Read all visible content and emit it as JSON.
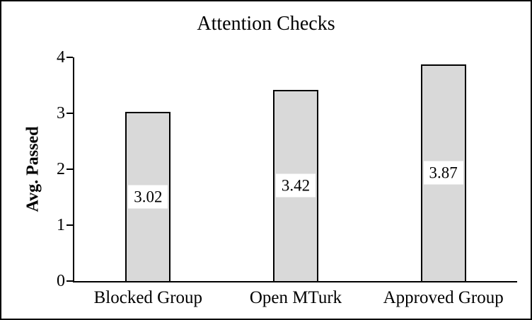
{
  "chart_data": {
    "type": "bar",
    "title": "Attention Checks",
    "xlabel": "",
    "ylabel": "Avg. Passed",
    "categories": [
      "Blocked Group",
      "Open MTurk",
      "Approved Group"
    ],
    "values": [
      3.02,
      3.42,
      3.87
    ],
    "data_labels": [
      "3.02",
      "3.42",
      "3.87"
    ],
    "yticks": [
      0,
      1,
      2,
      3,
      4
    ],
    "ylim": [
      0,
      4
    ],
    "grid": false,
    "legend_position": "none",
    "colors": {
      "bar_fill": "#d9d9d9",
      "bar_border": "#000000",
      "axis": "#000000",
      "text": "#000000",
      "background": "#ffffff",
      "label_box_fill": "#ffffff"
    }
  }
}
